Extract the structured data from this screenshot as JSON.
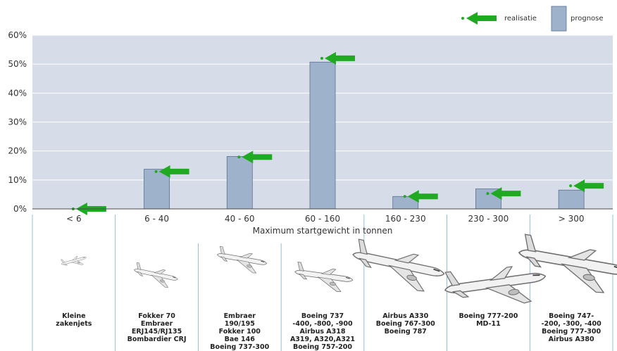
{
  "chart_data": {
    "type": "bar",
    "title": "",
    "xlabel": "Maximum startgewicht in tonnen",
    "ylabel": "",
    "ylim": [
      0,
      60
    ],
    "yticks": [
      "0%",
      "10%",
      "20%",
      "30%",
      "40%",
      "50%",
      "60%"
    ],
    "categories": [
      "< 6",
      "6 - 40",
      "40 - 60",
      "60 - 160",
      "160 - 230",
      "230 - 300",
      "> 300"
    ],
    "series": [
      {
        "name": "prognose",
        "values": [
          0,
          13.7,
          18.1,
          50.7,
          4.3,
          6.9,
          6.5
        ]
      },
      {
        "name": "realisatie",
        "values": [
          0,
          12.9,
          17.9,
          52.0,
          4.3,
          5.3,
          8.0
        ]
      }
    ],
    "legend": {
      "placement": "top-right",
      "entries": [
        "realisatie",
        "prognose"
      ]
    },
    "grid": true,
    "aircraft_groups": [
      {
        "lines": [
          "Kleine",
          "zakenjets"
        ]
      },
      {
        "lines": [
          "Fokker 70",
          "Embraer",
          "ERJ145/RJ135",
          "Bombardier CRJ"
        ]
      },
      {
        "lines": [
          "Embraer",
          "190/195",
          "Fokker 100",
          "Bae 146",
          "Boeing 737-300"
        ]
      },
      {
        "lines": [
          "Boeing 737",
          "-400, -800, -900",
          "Airbus A318",
          "A319, A320,A321",
          "Boeing 757-200"
        ]
      },
      {
        "lines": [
          "Airbus A330",
          "Boeing 767-300",
          "Boeing 787"
        ]
      },
      {
        "lines": [
          "Boeing 777-200",
          "MD-11"
        ]
      },
      {
        "lines": [
          "Boeing 747-",
          "-200, -300, -400",
          "Boeing 777-300",
          "Airbus A380"
        ]
      }
    ],
    "colors": {
      "bar": "#9fb2cc",
      "bar_edge": "#5a7090",
      "plot_bg": "#d6dde8",
      "realisatie": "#1faa22",
      "separator": "#7ab0c8"
    }
  }
}
